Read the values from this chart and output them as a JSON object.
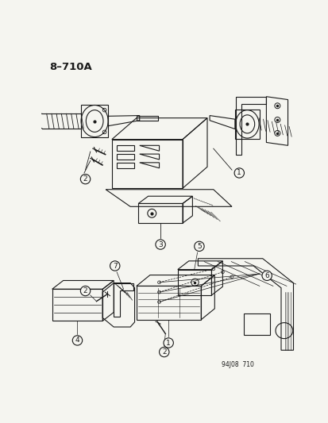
{
  "title": "8–710A",
  "footer": "94J08  710",
  "bg": "#f5f5f0",
  "lc": "#1a1a1a",
  "fig_w": 4.14,
  "fig_h": 5.33,
  "dpi": 100
}
